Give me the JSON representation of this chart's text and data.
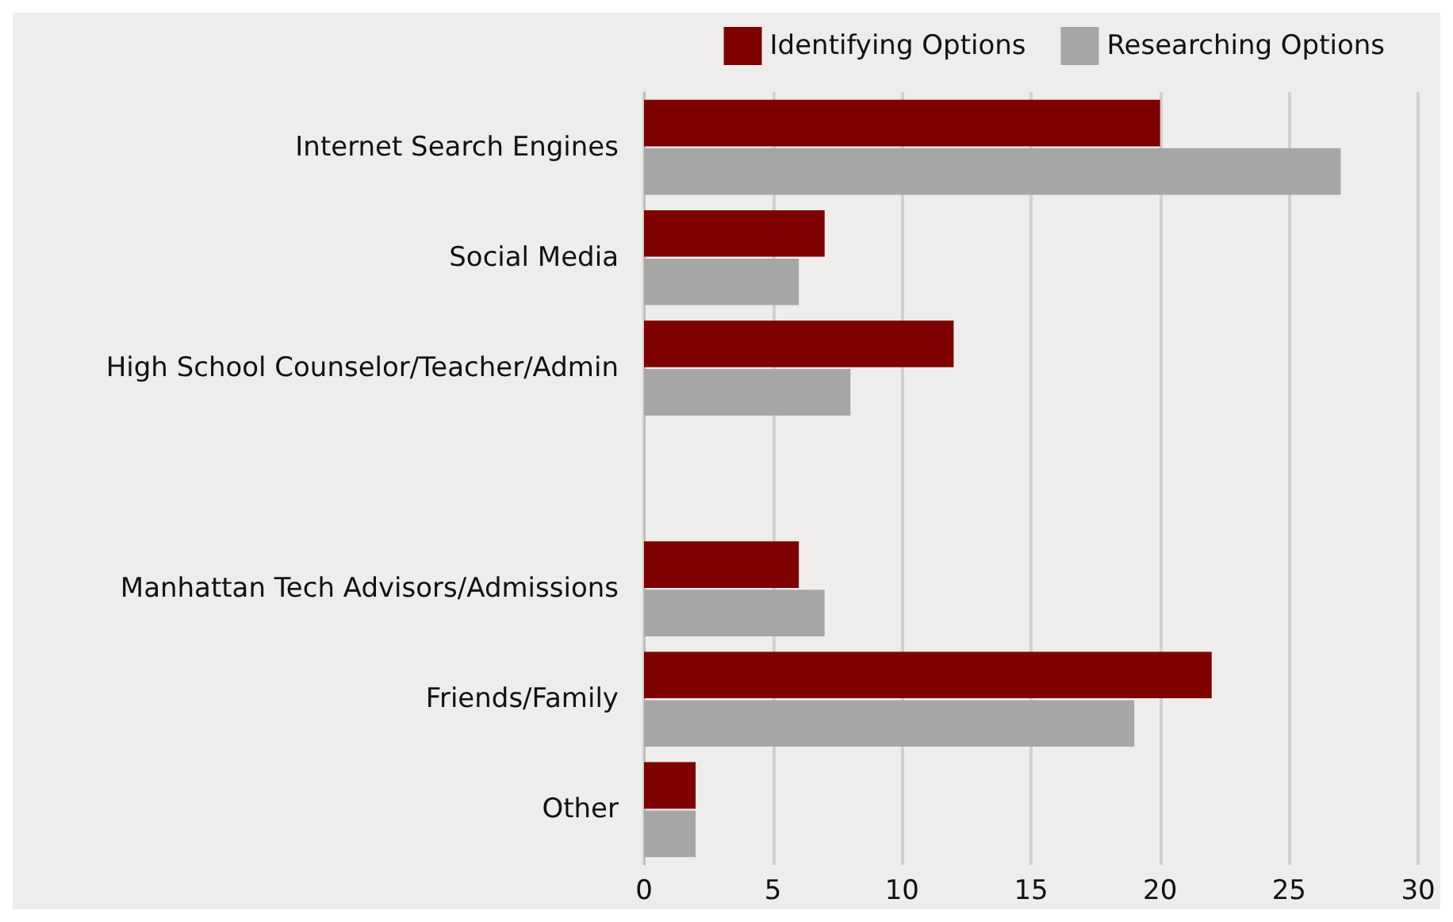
{
  "chart_data": {
    "type": "bar",
    "orientation": "horizontal",
    "categories": [
      "Internet Search Engines",
      "Social Media",
      "High School Counselor/Teacher/Admin",
      null,
      "Manhattan Tech Advisors/Admissions",
      "Friends/Family",
      "Other"
    ],
    "series": [
      {
        "name": "Identifying Options",
        "color": "#7f0000",
        "values": [
          20,
          7,
          12,
          0,
          6,
          22,
          2
        ]
      },
      {
        "name": "Researching Options",
        "color": "#a6a6a6",
        "values": [
          27,
          6,
          8,
          0,
          7,
          19,
          2
        ]
      }
    ],
    "xlim": [
      0,
      30
    ],
    "xticks": [
      0,
      5,
      10,
      15,
      20,
      25,
      30
    ],
    "grid": "x",
    "legend": "top right"
  }
}
